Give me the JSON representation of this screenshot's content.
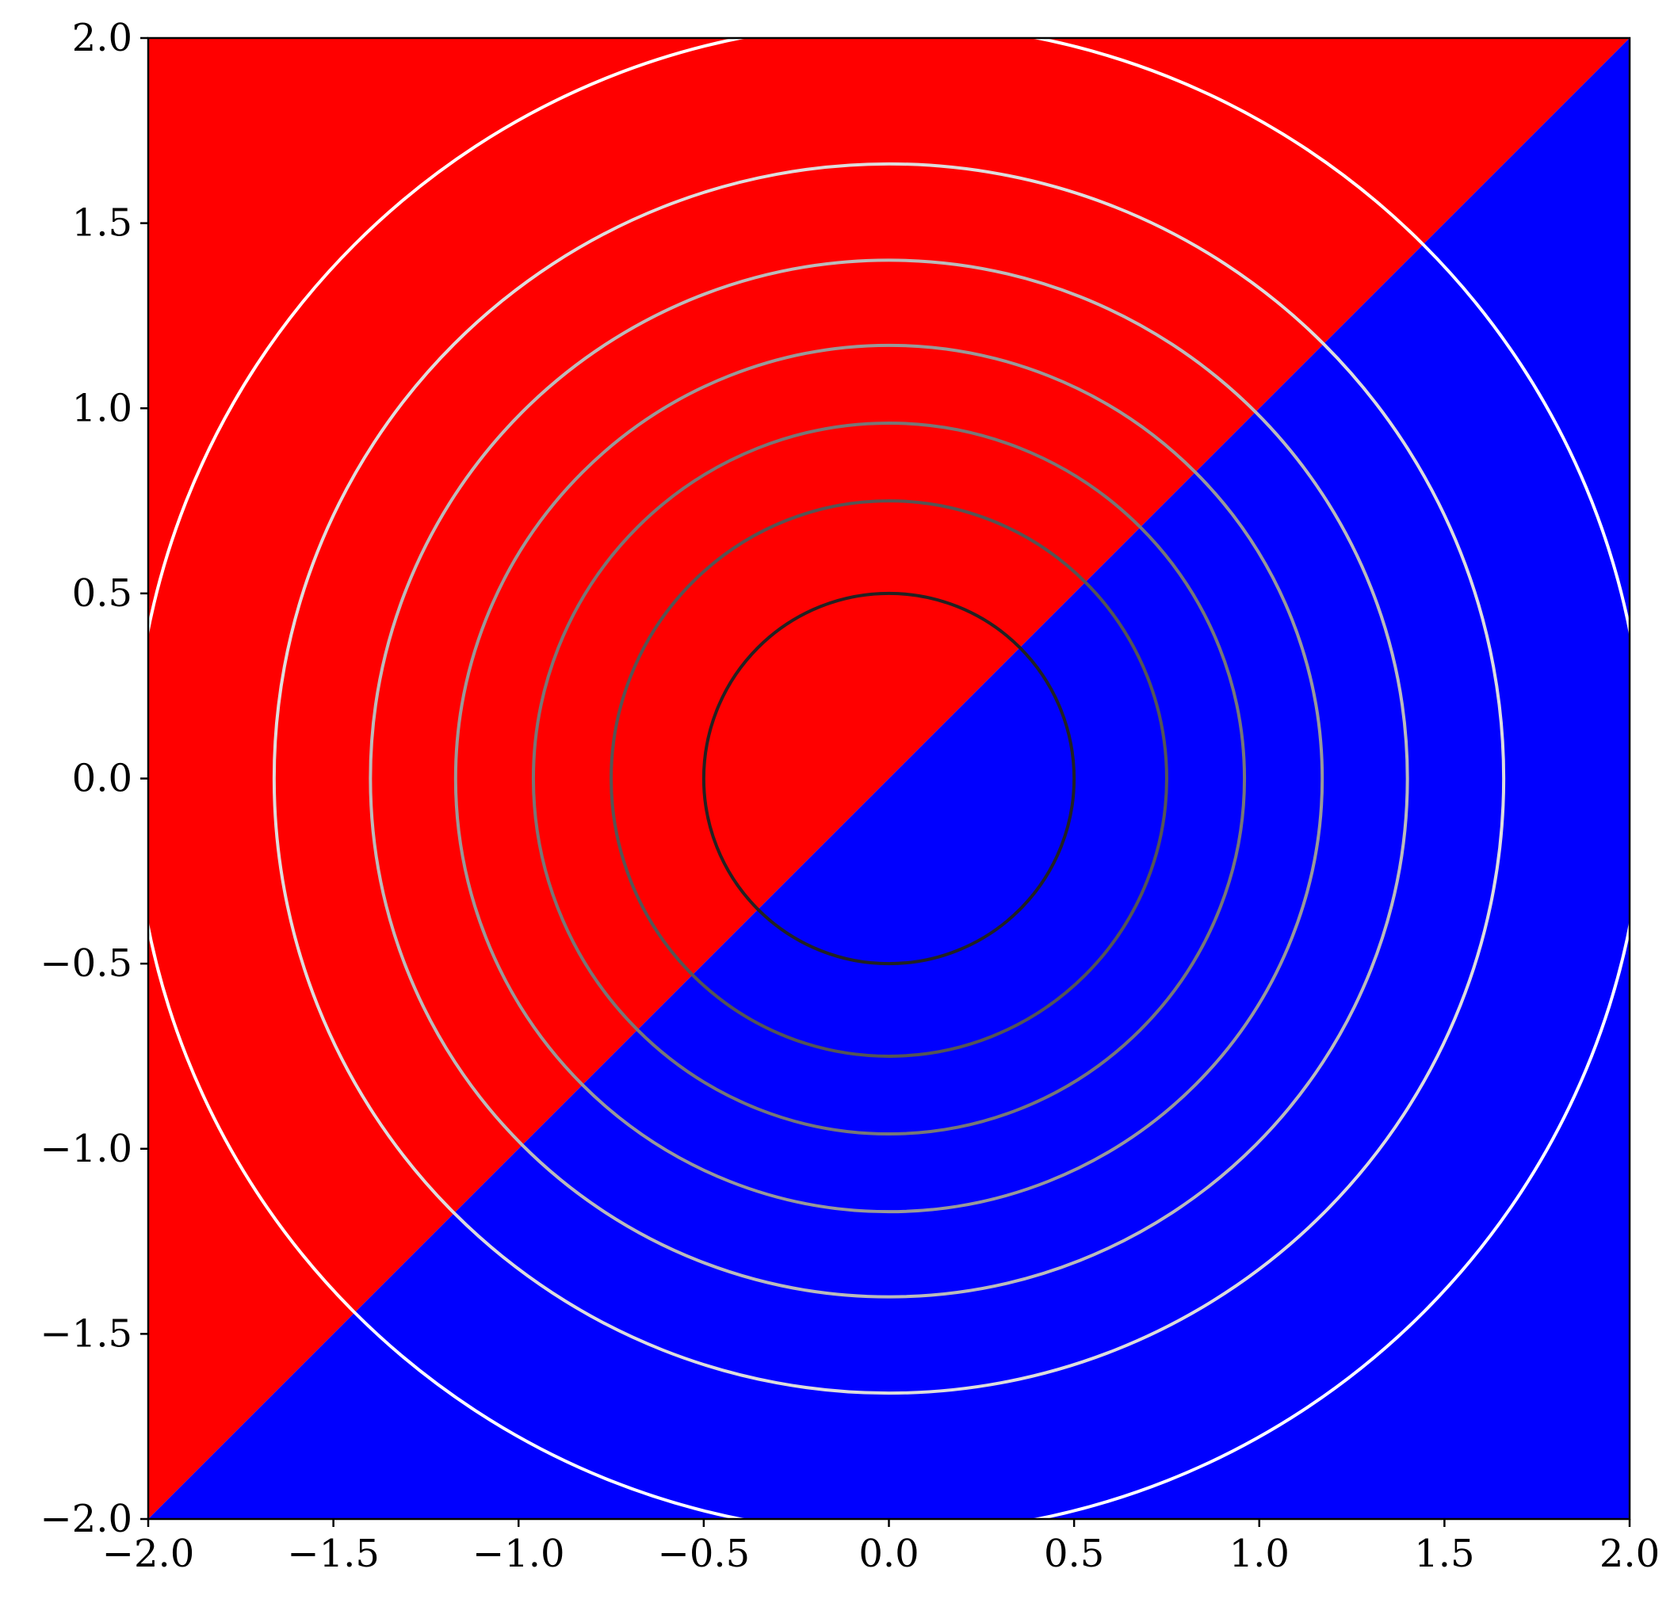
{
  "chart_data": {
    "type": "contour",
    "title": "",
    "xlabel": "",
    "ylabel": "",
    "xlim": [
      -2.0,
      2.0
    ],
    "ylim": [
      -2.0,
      2.0
    ],
    "grid": false,
    "legend": "none",
    "background_regions": [
      {
        "name": "above y = x",
        "color": "#ff0000"
      },
      {
        "name": "below y = x",
        "color": "#0000ff"
      }
    ],
    "boundary_line": {
      "from": [
        -2.0,
        -2.0
      ],
      "to": [
        2.0,
        2.0
      ]
    },
    "contours": [
      {
        "radius": 0.5,
        "color": "#222222"
      },
      {
        "radius": 0.75,
        "color": "#555555"
      },
      {
        "radius": 0.96,
        "color": "#777777"
      },
      {
        "radius": 1.17,
        "color": "#999999"
      },
      {
        "radius": 1.4,
        "color": "#bbbbbb"
      },
      {
        "radius": 1.66,
        "color": "#dddddd"
      },
      {
        "radius": 2.04,
        "color": "#ffffff"
      }
    ],
    "x_ticks": [
      {
        "value": -2.0,
        "label": "−2.0"
      },
      {
        "value": -1.5,
        "label": "−1.5"
      },
      {
        "value": -1.0,
        "label": "−1.0"
      },
      {
        "value": -0.5,
        "label": "−0.5"
      },
      {
        "value": 0.0,
        "label": "0.0"
      },
      {
        "value": 0.5,
        "label": "0.5"
      },
      {
        "value": 1.0,
        "label": "1.0"
      },
      {
        "value": 1.5,
        "label": "1.5"
      },
      {
        "value": 2.0,
        "label": "2.0"
      }
    ],
    "y_ticks": [
      {
        "value": 2.0,
        "label": "2.0"
      },
      {
        "value": 1.5,
        "label": "1.5"
      },
      {
        "value": 1.0,
        "label": "1.0"
      },
      {
        "value": 0.5,
        "label": "0.5"
      },
      {
        "value": 0.0,
        "label": "0.0"
      },
      {
        "value": -0.5,
        "label": "−0.5"
      },
      {
        "value": -1.0,
        "label": "−1.0"
      },
      {
        "value": -1.5,
        "label": "−1.5"
      },
      {
        "value": -2.0,
        "label": "−2.0"
      }
    ]
  }
}
